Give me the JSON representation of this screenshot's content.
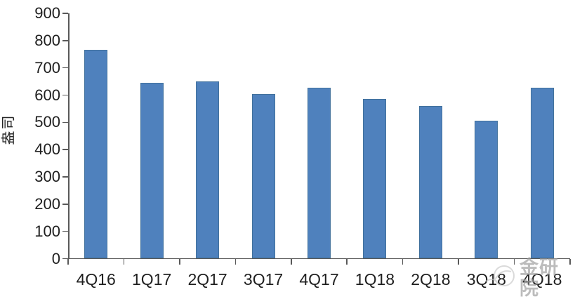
{
  "chart_data": {
    "type": "bar",
    "title": "",
    "xlabel": "",
    "ylabel": "盎司",
    "categories": [
      "4Q16",
      "1Q17",
      "2Q17",
      "3Q17",
      "4Q17",
      "1Q18",
      "2Q18",
      "3Q18",
      "4Q18"
    ],
    "values": [
      765,
      645,
      650,
      605,
      628,
      585,
      560,
      505,
      628
    ],
    "ylim": [
      0,
      900
    ],
    "ytick_step": 100,
    "grid": false,
    "legend": false,
    "bar_color": "#4F81BD",
    "bar_border_color": "#41719C",
    "axis_color": "#595959",
    "text_color": "#1f1f1f"
  },
  "watermark": {
    "text": "金研院",
    "logo_color": "#c4c4c4"
  }
}
